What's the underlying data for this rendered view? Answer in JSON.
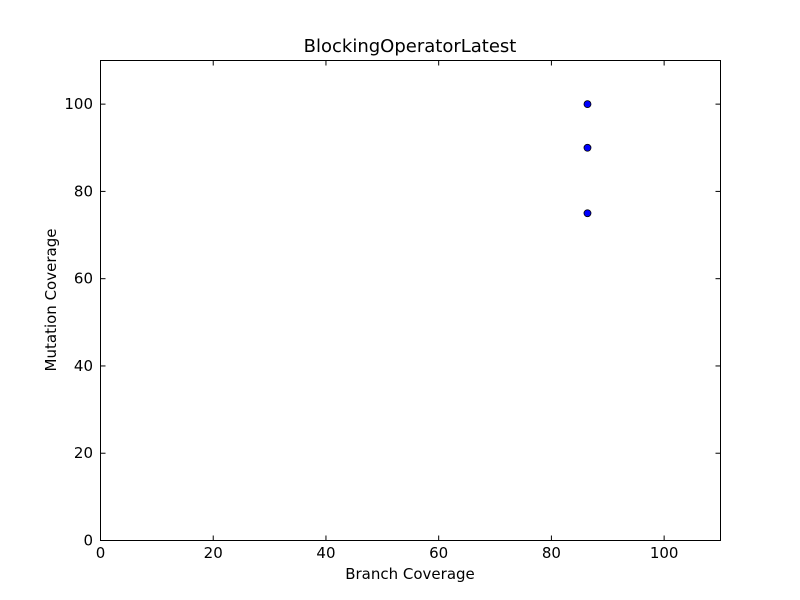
{
  "chart_data": {
    "type": "scatter",
    "title": "BlockingOperatorLatest",
    "xlabel": "Branch Coverage",
    "ylabel": "Mutation Coverage",
    "xlim": [
      0,
      110
    ],
    "ylim": [
      0,
      110
    ],
    "xticks": [
      0,
      20,
      40,
      60,
      80,
      100
    ],
    "yticks": [
      0,
      20,
      40,
      60,
      80,
      100
    ],
    "grid": false,
    "legend": false,
    "series": [
      {
        "color": "#0000ff",
        "edge_color": "#000000",
        "points": [
          {
            "x": 86.4,
            "y": 100
          },
          {
            "x": 86.4,
            "y": 90
          },
          {
            "x": 86.4,
            "y": 75
          }
        ]
      }
    ]
  }
}
